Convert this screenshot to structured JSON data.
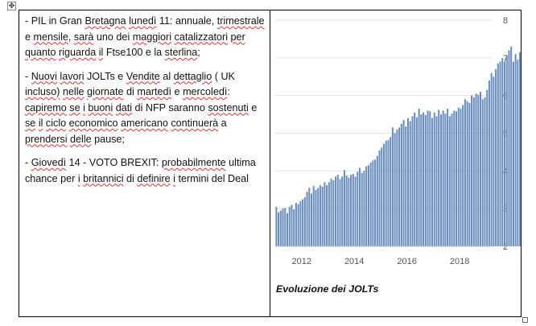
{
  "paragraphs": [
    "- PIL in Gran Bretagna lunedì 11: annuale, trimestrale e mensile, sarà uno dei maggiori catalizzatori per quanto riguarda il Ftse100 e la sterlina;",
    "- Nuovi lavori JOLTs e Vendite al dettaglio ( UK incluso) nelle giornate di martedì e mercoledì: capiremo se i buoni dati di NFP saranno sostenuti e se il ciclo economico americano continuerà a prendersi delle pause;",
    "- Giovedì 14 - VOTO BREXIT: probabilmente ultima chance per i britannici di definire i termini del Deal"
  ],
  "chart_caption": "Evoluzione dei JOLTs",
  "chart_data": {
    "type": "bar",
    "bar_color": "#6a8ebd",
    "grid": true,
    "x_range": [
      2011.0,
      2019.25
    ],
    "ylim": [
      2,
      8
    ],
    "x_ticks": [
      2012,
      2014,
      2016,
      2018
    ],
    "x_tick_labels": [
      "2012",
      "2014",
      "2016",
      "2018"
    ],
    "y_ticks": [
      2,
      3,
      4,
      5,
      6,
      7,
      8
    ],
    "y_tick_labels": [
      "2",
      "3",
      "4",
      "5",
      "6",
      "7",
      "8"
    ],
    "x_start": "2011-01",
    "x_step": "monthly",
    "values": [
      3.05,
      2.9,
      2.95,
      3.0,
      3.02,
      2.88,
      3.05,
      3.1,
      2.98,
      3.15,
      3.12,
      3.2,
      3.25,
      3.3,
      3.45,
      3.55,
      3.4,
      3.6,
      3.5,
      3.55,
      3.62,
      3.58,
      3.7,
      3.62,
      3.7,
      3.8,
      3.75,
      3.85,
      3.9,
      3.78,
      3.85,
      4.02,
      3.88,
      3.82,
      3.9,
      3.92,
      3.85,
      3.98,
      4.08,
      3.95,
      4.0,
      4.12,
      4.15,
      4.22,
      4.28,
      4.3,
      4.4,
      4.55,
      4.62,
      4.72,
      4.8,
      4.82,
      4.9,
      5.15,
      5.0,
      5.1,
      5.15,
      5.25,
      5.35,
      5.18,
      5.4,
      5.32,
      5.45,
      5.55,
      5.42,
      5.65,
      5.5,
      5.55,
      5.48,
      5.6,
      5.58,
      5.4,
      5.55,
      5.45,
      5.62,
      5.5,
      5.6,
      5.52,
      5.65,
      5.45,
      5.52,
      5.6,
      5.58,
      5.68,
      5.65,
      5.75,
      5.9,
      5.85,
      5.8,
      6.0,
      5.95,
      6.05,
      6.02,
      6.1,
      5.9,
      5.95,
      6.15,
      6.4,
      6.6,
      6.5,
      6.7,
      6.85,
      6.9,
      7.0,
      6.9,
      7.05,
      7.2,
      7.3,
      6.9,
      7.1,
      6.95,
      7.15
    ]
  }
}
